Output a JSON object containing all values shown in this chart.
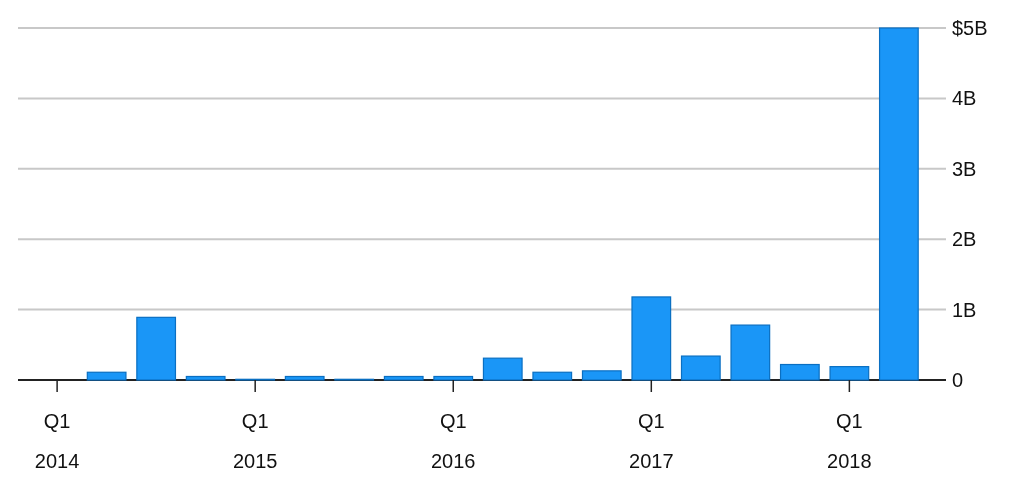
{
  "chart_data": {
    "type": "bar",
    "categories": [
      "Q1\n2014",
      null,
      null,
      null,
      "Q1\n2015",
      null,
      null,
      null,
      "Q1\n2016",
      null,
      null,
      null,
      "Q1\n2017",
      null,
      null,
      null,
      "Q1\n2018",
      null
    ],
    "values": [
      0,
      0.11,
      0.89,
      0.05,
      0.01,
      0.05,
      0.01,
      0.05,
      0.05,
      0.31,
      0.11,
      0.13,
      1.18,
      0.34,
      0.78,
      0.22,
      0.19,
      5.0
    ],
    "color": "#1a96f7",
    "ylim": [
      0,
      5
    ],
    "yticks": [
      {
        "value": 0,
        "label": "0"
      },
      {
        "value": 1,
        "label": "1B"
      },
      {
        "value": 2,
        "label": "2B"
      },
      {
        "value": 3,
        "label": "3B"
      },
      {
        "value": 4,
        "label": "4B"
      },
      {
        "value": 5,
        "label": "$5B"
      }
    ],
    "grid": "y"
  }
}
